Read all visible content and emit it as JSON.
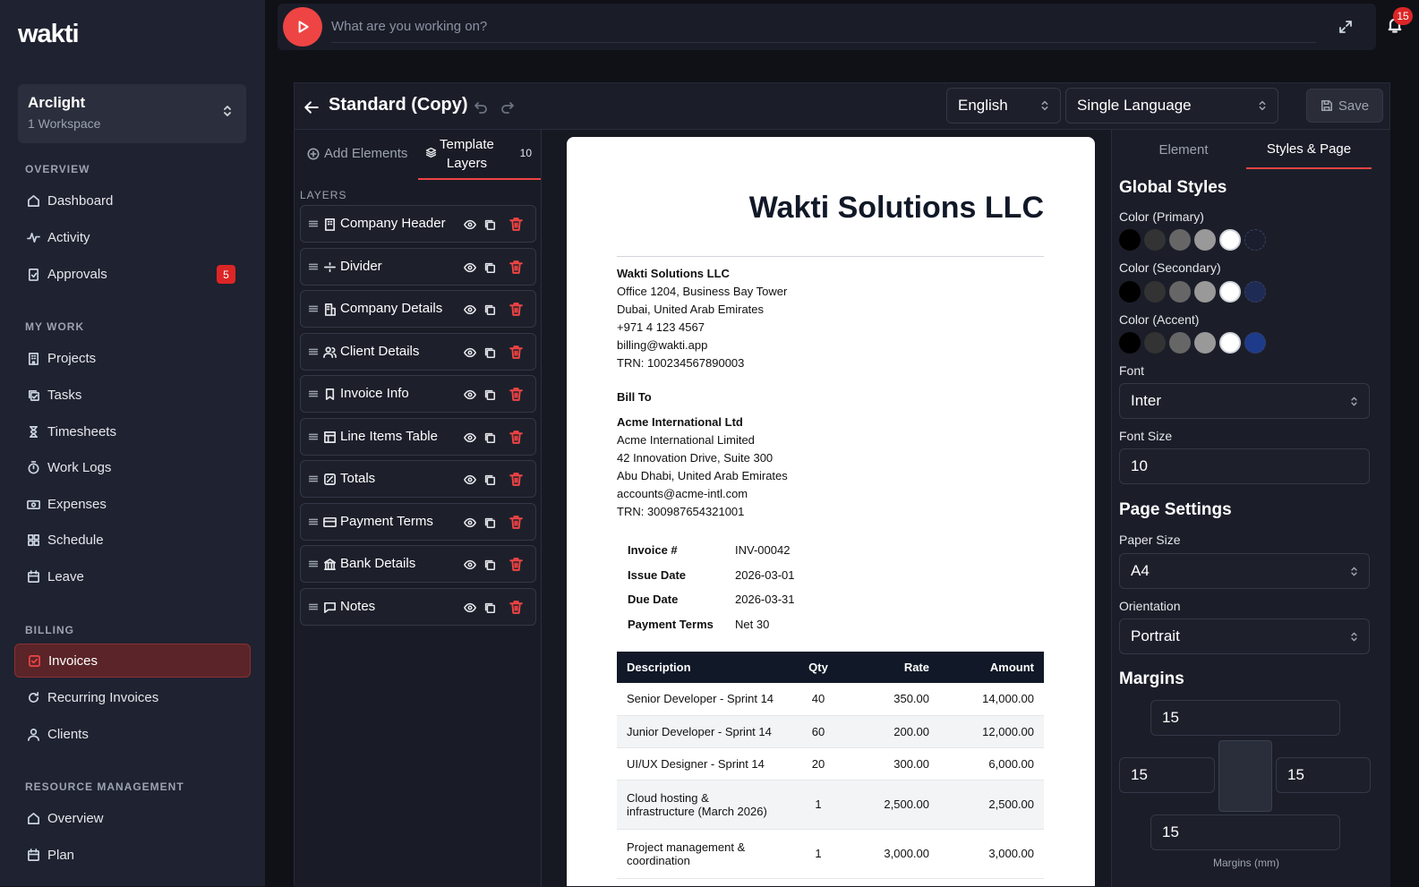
{
  "app": {
    "logo": "wakti"
  },
  "workspace": {
    "name": "Arclight",
    "sub": "1 Workspace"
  },
  "nav": {
    "overview_label": "OVERVIEW",
    "dashboard": "Dashboard",
    "activity": "Activity",
    "approvals": "Approvals",
    "approvals_badge": "5",
    "mywork_label": "MY WORK",
    "projects": "Projects",
    "tasks": "Tasks",
    "timesheets": "Timesheets",
    "worklogs": "Work Logs",
    "expenses": "Expenses",
    "schedule": "Schedule",
    "leave": "Leave",
    "billing_label": "BILLING",
    "invoices": "Invoices",
    "recurring": "Recurring Invoices",
    "clients": "Clients",
    "resource_label": "RESOURCE MANAGEMENT",
    "rm_overview": "Overview",
    "plan": "Plan"
  },
  "topbar": {
    "placeholder": "What are you working on?",
    "notifications": "15"
  },
  "editor": {
    "title": "Standard (Copy)",
    "language": "English",
    "mode": "Single Language",
    "save": "Save"
  },
  "layers_panel": {
    "tab_add": "Add Elements",
    "tab_layers_line1": "Template",
    "tab_layers_line2": "Layers",
    "count": "10",
    "heading": "LAYERS",
    "items": [
      "Company Header",
      "Divider",
      "Company Details",
      "Client Details",
      "Invoice Info",
      "Line Items Table",
      "Totals",
      "Payment Terms",
      "Bank Details",
      "Notes"
    ]
  },
  "invoice": {
    "company_title": "Wakti Solutions LLC",
    "company": {
      "name": "Wakti Solutions LLC",
      "line1": "Office 1204, Business Bay Tower",
      "line2": "Dubai, United Arab Emirates",
      "phone": "+971 4 123 4567",
      "email": "billing@wakti.app",
      "trn": "TRN: 100234567890003"
    },
    "bill_to_label": "Bill To",
    "client": {
      "name": "Acme International Ltd",
      "legal": "Acme International Limited",
      "line1": "42 Innovation Drive, Suite 300",
      "line2": "Abu Dhabi, United Arab Emirates",
      "email": "accounts@acme-intl.com",
      "trn": "TRN: 300987654321001"
    },
    "meta": [
      {
        "label": "Invoice #",
        "value": "INV-00042"
      },
      {
        "label": "Issue Date",
        "value": "2026-03-01"
      },
      {
        "label": "Due Date",
        "value": "2026-03-31"
      },
      {
        "label": "Payment Terms",
        "value": "Net 30"
      }
    ],
    "table_headers": {
      "desc": "Description",
      "qty": "Qty",
      "rate": "Rate",
      "amount": "Amount"
    },
    "rows": [
      {
        "desc": "Senior Developer - Sprint 14",
        "qty": "40",
        "rate": "350.00",
        "amount": "14,000.00"
      },
      {
        "desc": "Junior Developer - Sprint 14",
        "qty": "60",
        "rate": "200.00",
        "amount": "12,000.00"
      },
      {
        "desc": "UI/UX Designer - Sprint 14",
        "qty": "20",
        "rate": "300.00",
        "amount": "6,000.00"
      },
      {
        "desc": "Cloud hosting & infrastructure (March 2026)",
        "qty": "1",
        "rate": "2,500.00",
        "amount": "2,500.00"
      },
      {
        "desc": "Project management & coordination",
        "qty": "1",
        "rate": "3,000.00",
        "amount": "3,000.00"
      }
    ]
  },
  "styles_panel": {
    "tab_element": "Element",
    "tab_styles": "Styles & Page",
    "global_title": "Global Styles",
    "color_primary": "Color (Primary)",
    "color_secondary": "Color (Secondary)",
    "color_accent": "Color (Accent)",
    "swatches_primary": [
      "#000000",
      "#333333",
      "#666666",
      "#999999",
      "#ffffff",
      "#1a1e2e"
    ],
    "swatches_secondary": [
      "#000000",
      "#333333",
      "#666666",
      "#999999",
      "#ffffff",
      "#1e2b55"
    ],
    "swatches_accent": [
      "#000000",
      "#333333",
      "#666666",
      "#999999",
      "#ffffff",
      "#1e3a8a"
    ],
    "font_label": "Font",
    "font_value": "Inter",
    "font_size_label": "Font Size",
    "font_size_value": "10",
    "page_title": "Page Settings",
    "paper_label": "Paper Size",
    "paper_value": "A4",
    "orientation_label": "Orientation",
    "orientation_value": "Portrait",
    "margins_title": "Margins",
    "margin_top": "15",
    "margin_left": "15",
    "margin_right": "15",
    "margin_bottom": "15",
    "margins_caption": "Margins (mm)"
  },
  "colors": {
    "accent": "#ef4444",
    "sidebar": "#1f2230",
    "active_nav": "#5a2428"
  }
}
